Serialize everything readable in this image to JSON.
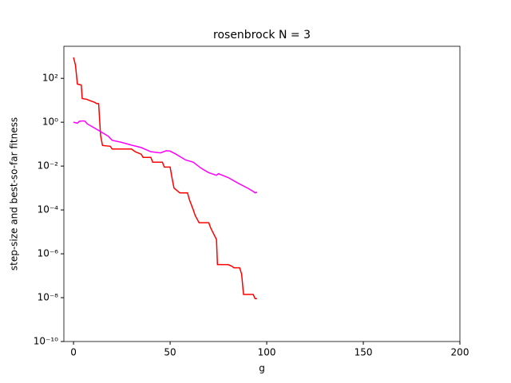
{
  "chart_data": {
    "type": "line",
    "title": "rosenbrock N = 3",
    "x_label": "g",
    "y_label": "step-size and best-so-far fitness",
    "log_y": true,
    "grid": false,
    "xlim": [
      -5,
      200
    ],
    "xticks": [
      0,
      50,
      100,
      150,
      200
    ],
    "ylim": [
      1e-10,
      2900
    ],
    "yticks": [
      {
        "value": 1e-10,
        "label": "10⁻¹⁰"
      },
      {
        "value": 1e-08,
        "label": "10⁻⁸"
      },
      {
        "value": 1e-06,
        "label": "10⁻⁶"
      },
      {
        "value": 0.0001,
        "label": "10⁻⁴"
      },
      {
        "value": 0.01,
        "label": "10⁻²"
      },
      {
        "value": 1,
        "label": "10⁰"
      },
      {
        "value": 100,
        "label": "10²"
      }
    ],
    "series": [
      {
        "color": "#ff0000",
        "x": [
          0,
          1,
          2,
          4,
          4.5,
          7,
          8,
          11,
          12,
          13,
          14,
          15,
          19,
          20,
          30,
          32,
          35,
          36,
          40,
          41,
          46,
          47,
          50,
          51,
          52,
          55,
          59,
          60,
          62,
          63,
          65,
          70,
          71,
          72,
          74,
          74.5,
          80,
          82,
          83,
          86,
          87,
          88,
          93,
          94,
          95
        ],
        "values": [
          900,
          400,
          55,
          50,
          12,
          11,
          10,
          8,
          7,
          7,
          0.25,
          0.087,
          0.08,
          0.06,
          0.06,
          0.045,
          0.035,
          0.025,
          0.025,
          0.015,
          0.015,
          0.009,
          0.009,
          0.0028,
          0.001,
          0.0006,
          0.0006,
          0.00029,
          0.0001,
          5.5e-05,
          2.6e-05,
          2.6e-05,
          1.5e-05,
          1e-05,
          4.5e-06,
          3.2e-07,
          3.2e-07,
          2.7e-07,
          2.3e-07,
          2.3e-07,
          1.2e-07,
          1.4e-08,
          1.4e-08,
          9e-09,
          9e-09
        ]
      },
      {
        "color": "#ff00ff",
        "x": [
          0,
          1,
          2,
          3,
          5,
          6,
          7,
          10,
          15,
          18,
          20,
          25,
          30,
          35,
          40,
          45,
          48,
          50,
          53,
          58,
          62,
          66,
          70,
          74,
          75,
          80,
          85,
          90,
          93,
          94,
          95
        ],
        "values": [
          1.0,
          0.95,
          0.9,
          1.1,
          1.15,
          1.1,
          0.85,
          0.6,
          0.33,
          0.23,
          0.15,
          0.12,
          0.09,
          0.07,
          0.045,
          0.04,
          0.05,
          0.048,
          0.035,
          0.019,
          0.015,
          0.008,
          0.005,
          0.0038,
          0.0045,
          0.003,
          0.0017,
          0.001,
          0.0007,
          0.0006,
          0.00065
        ]
      }
    ]
  }
}
